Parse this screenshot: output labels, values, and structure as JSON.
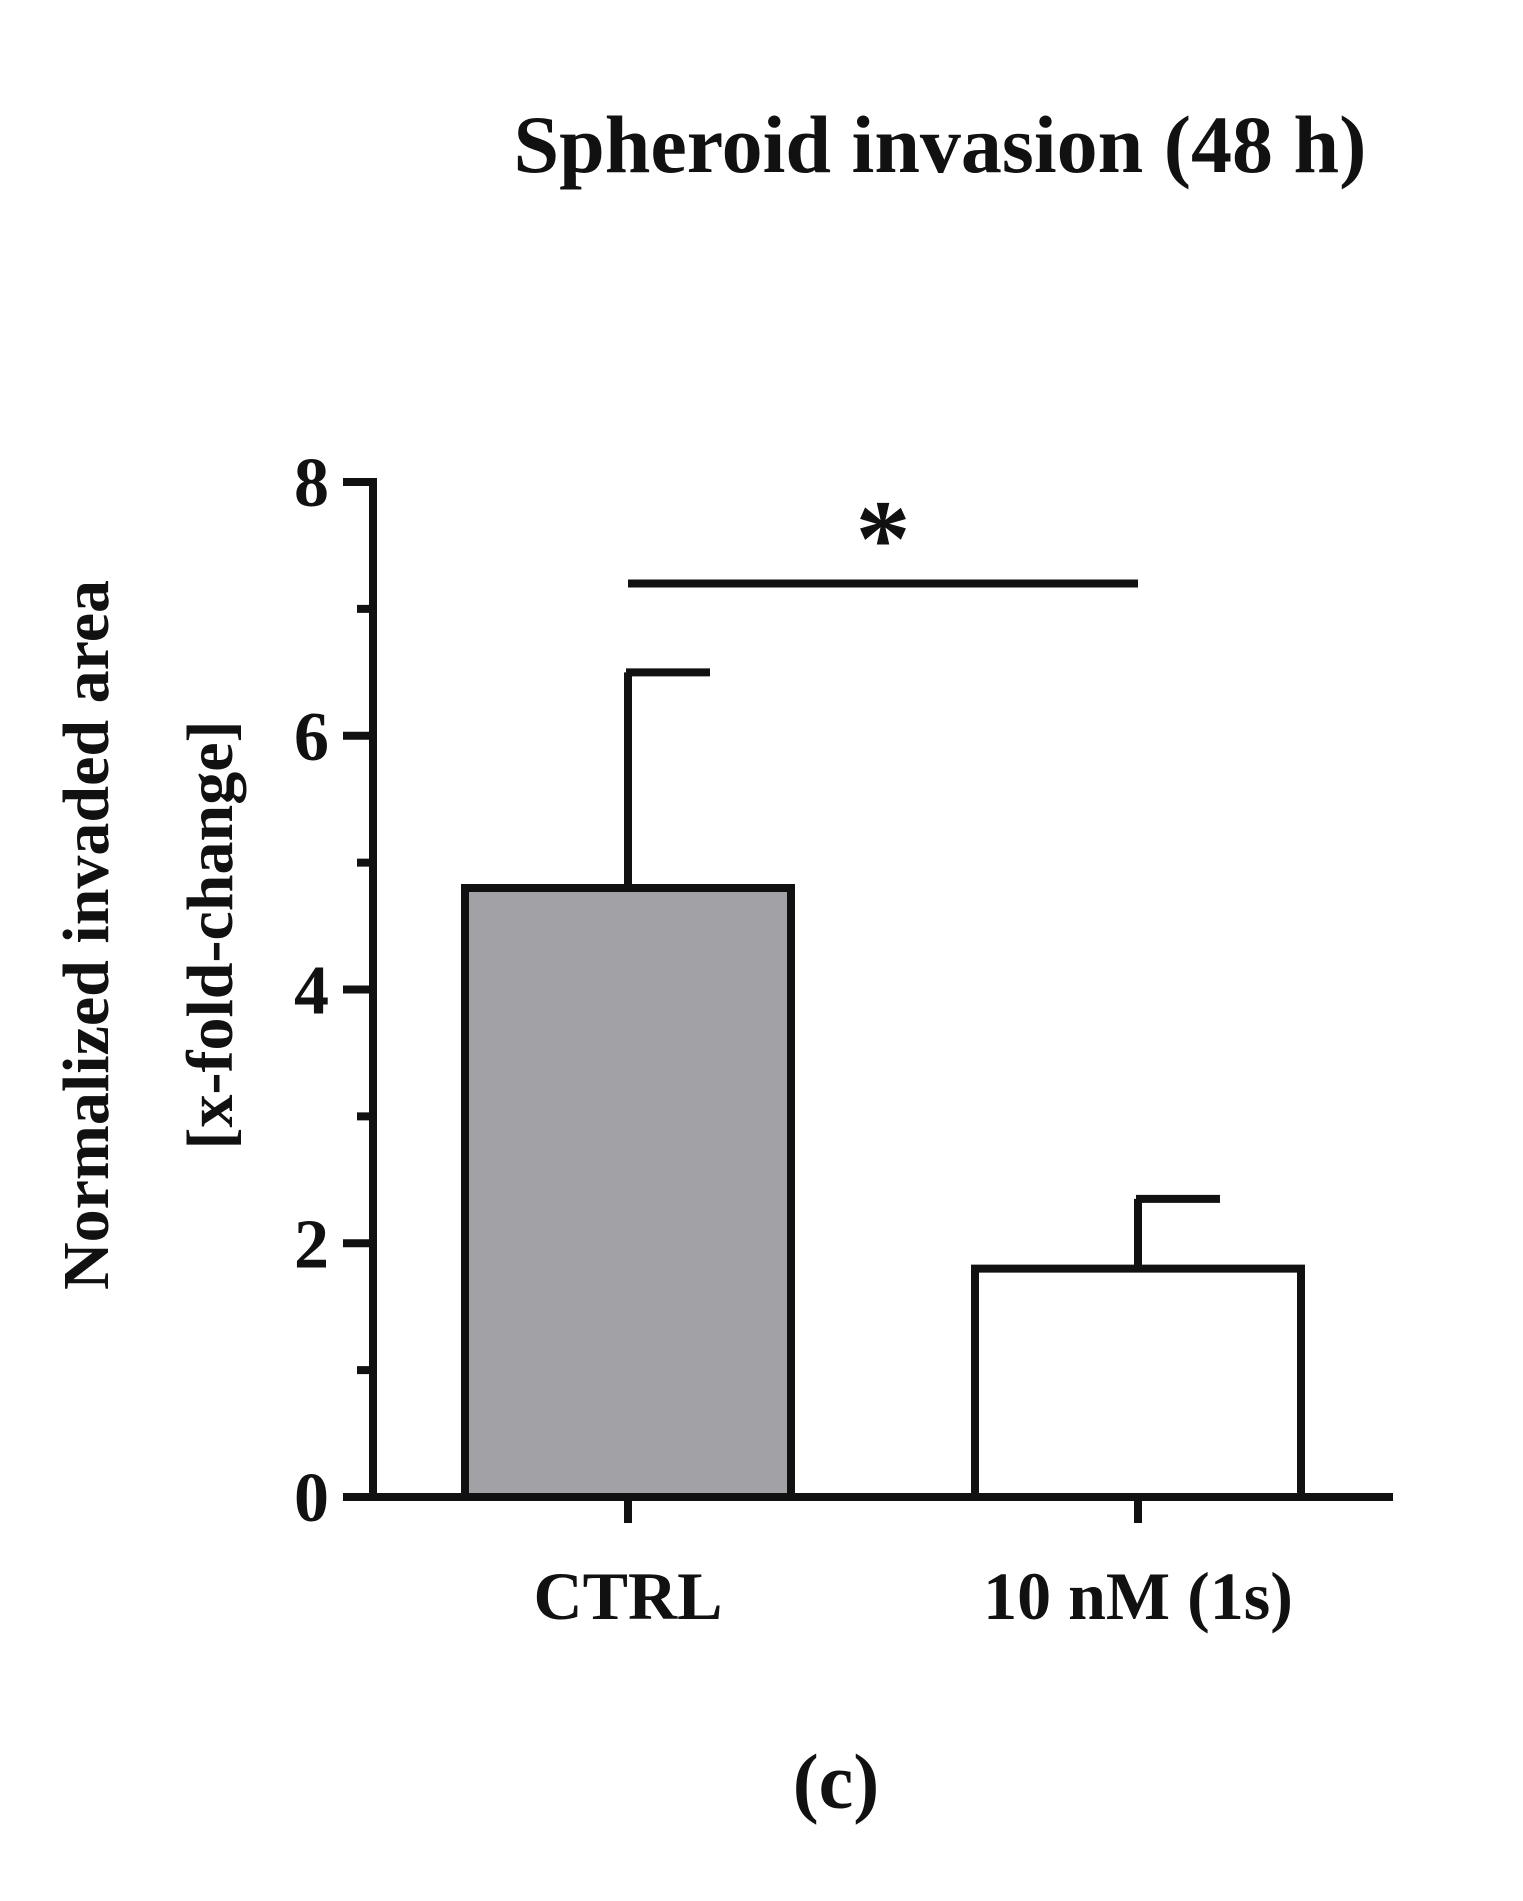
{
  "chart_data": {
    "type": "bar",
    "title": "Spheroid invasion (48 h)",
    "ylabel_lines": [
      "Normalized invaded area",
      "[x-fold-change]"
    ],
    "xlabel": "",
    "categories": [
      "CTRL",
      "10 nM (1s)"
    ],
    "values": [
      4.8,
      1.8
    ],
    "error_upper": [
      6.5,
      2.35
    ],
    "bar_colors": [
      "#a2a1a6",
      "#ffffff"
    ],
    "ylim": [
      0,
      8
    ],
    "yticks": [
      0,
      2,
      4,
      6,
      8
    ],
    "ytick_labels": [
      "0",
      "2",
      "4",
      "6",
      "8"
    ],
    "minor_yticks": [
      1,
      3,
      5,
      7
    ],
    "significance": {
      "label": "*",
      "between": [
        0,
        1
      ],
      "y": 7.2
    },
    "grid": false,
    "panel_label": "(c)"
  },
  "colors": {
    "ink": "#111111",
    "background": "#ffffff"
  }
}
